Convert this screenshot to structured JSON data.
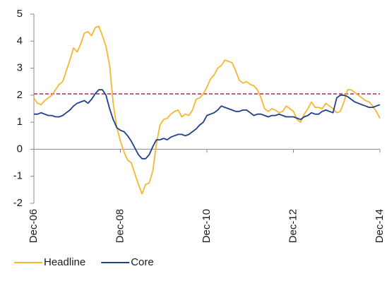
{
  "chart_data": {
    "type": "line",
    "categories": [
      "Dec-06",
      null,
      null,
      null,
      null,
      null,
      null,
      null,
      null,
      null,
      null,
      null,
      null,
      null,
      null,
      null,
      null,
      null,
      null,
      null,
      null,
      null,
      null,
      null,
      "Dec-08",
      null,
      null,
      null,
      null,
      null,
      null,
      null,
      null,
      null,
      null,
      null,
      null,
      null,
      null,
      null,
      null,
      null,
      null,
      null,
      null,
      null,
      null,
      null,
      "Dec-10",
      null,
      null,
      null,
      null,
      null,
      null,
      null,
      null,
      null,
      null,
      null,
      null,
      null,
      null,
      null,
      null,
      null,
      null,
      null,
      null,
      null,
      null,
      null,
      "Dec-12",
      null,
      null,
      null,
      null,
      null,
      null,
      null,
      null,
      null,
      null,
      null,
      null,
      null,
      null,
      null,
      null,
      null,
      null,
      null,
      null,
      null,
      null,
      null,
      "Dec-14"
    ],
    "series": [
      {
        "name": "Headline",
        "color": "#f5b731",
        "values": [
          1.9,
          1.7,
          1.65,
          1.8,
          1.9,
          2.0,
          2.2,
          2.4,
          2.5,
          2.9,
          3.3,
          3.75,
          3.6,
          3.9,
          4.3,
          4.35,
          4.2,
          4.5,
          4.55,
          4.2,
          3.8,
          3.1,
          1.7,
          0.8,
          0.3,
          -0.1,
          -0.4,
          -0.5,
          -0.9,
          -1.3,
          -1.65,
          -1.3,
          -1.25,
          -0.8,
          0.2,
          0.9,
          1.1,
          1.15,
          1.3,
          1.4,
          1.45,
          1.2,
          1.3,
          1.25,
          1.45,
          1.85,
          1.9,
          2.05,
          2.3,
          2.6,
          2.75,
          3.0,
          3.1,
          3.3,
          3.25,
          3.2,
          2.9,
          2.55,
          2.45,
          2.5,
          2.4,
          2.35,
          2.2,
          1.9,
          1.5,
          1.4,
          1.5,
          1.45,
          1.35,
          1.4,
          1.6,
          1.5,
          1.4,
          1.1,
          1.0,
          1.3,
          1.5,
          1.75,
          1.55,
          1.55,
          1.5,
          1.7,
          1.6,
          1.5,
          1.35,
          1.4,
          1.75,
          2.2,
          2.2,
          2.1,
          2.0,
          1.9,
          1.8,
          1.75,
          1.6,
          1.4,
          1.15
        ]
      },
      {
        "name": "Core",
        "color": "#1f3f8a",
        "values": [
          1.3,
          1.3,
          1.35,
          1.3,
          1.25,
          1.25,
          1.2,
          1.2,
          1.25,
          1.35,
          1.45,
          1.6,
          1.7,
          1.75,
          1.8,
          1.7,
          1.85,
          2.05,
          2.2,
          2.2,
          2.0,
          1.5,
          1.1,
          0.8,
          0.7,
          0.65,
          0.5,
          0.3,
          0.05,
          -0.2,
          -0.35,
          -0.35,
          -0.2,
          0.1,
          0.35,
          0.35,
          0.4,
          0.35,
          0.45,
          0.5,
          0.55,
          0.55,
          0.5,
          0.55,
          0.65,
          0.75,
          0.9,
          1.0,
          1.25,
          1.3,
          1.35,
          1.45,
          1.6,
          1.55,
          1.5,
          1.45,
          1.4,
          1.4,
          1.45,
          1.45,
          1.35,
          1.25,
          1.3,
          1.3,
          1.25,
          1.2,
          1.25,
          1.25,
          1.3,
          1.25,
          1.2,
          1.2,
          1.2,
          1.15,
          1.1,
          1.2,
          1.25,
          1.35,
          1.3,
          1.3,
          1.4,
          1.45,
          1.4,
          1.35,
          1.9,
          2.0,
          2.0,
          1.95,
          1.85,
          1.75,
          1.7,
          1.65,
          1.6,
          1.55,
          1.55,
          1.6,
          1.65
        ]
      }
    ],
    "reference_line": 2.05,
    "reference_color": "#9b2a5a",
    "ylim": [
      -2,
      5
    ],
    "yticks": [
      -2,
      -1,
      0,
      1,
      2,
      3,
      4,
      5
    ],
    "legend": "bottom"
  }
}
